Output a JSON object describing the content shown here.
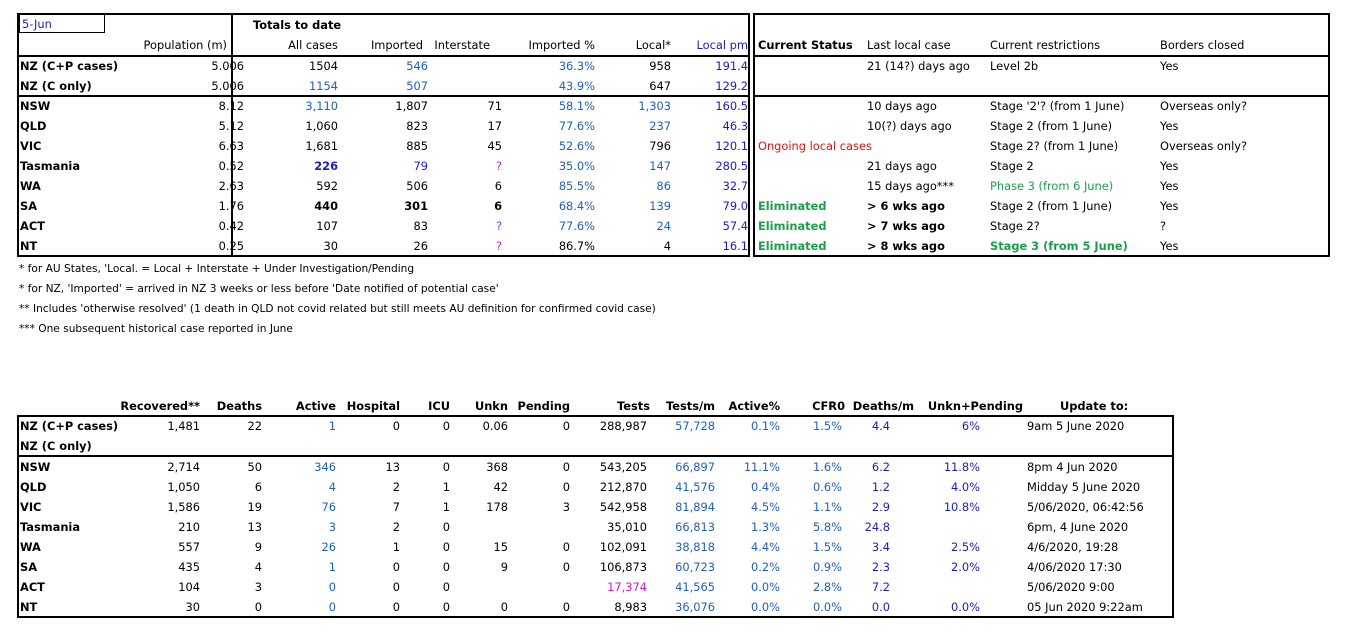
{
  "t1": {
    "date": "5-Jun",
    "group_header": "Totals to date",
    "headers": [
      "Population (m)",
      "All cases",
      "Imported",
      "Interstate",
      "Imported %",
      "Local*",
      "Local pm"
    ],
    "status_headers": [
      "Current Status",
      "Last local case",
      "Current restrictions",
      "Borders closed"
    ],
    "rows": [
      [
        "NZ (C+P cases)",
        "5.006",
        "1504",
        "546",
        "",
        "36.3%",
        "958",
        "191.4",
        "",
        "21 (14?) days ago",
        "Level 2b",
        "Yes"
      ],
      [
        "NZ (C only)",
        "5.006",
        "1154",
        "507",
        "",
        "43.9%",
        "647",
        "129.2",
        "",
        "",
        "",
        ""
      ],
      [
        "NSW",
        "8.12",
        "3,110",
        "1,807",
        "71",
        "58.1%",
        "1,303",
        "160.5",
        "",
        "10 days ago",
        "Stage '2'? (from 1 June)",
        "Overseas only?"
      ],
      [
        "QLD",
        "5.12",
        "1,060",
        "823",
        "17",
        "77.6%",
        "237",
        "46.3",
        "",
        "10(?) days ago",
        "Stage 2 (from 1 June)",
        "Yes"
      ],
      [
        "VIC",
        "6.63",
        "1,681",
        "885",
        "45",
        "52.6%",
        "796",
        "120.1",
        "Ongoing local cases",
        "",
        "Stage 2? (from 1 June)",
        "Overseas only?"
      ],
      [
        "Tasmania",
        "0.52",
        "226",
        "79",
        "?",
        "35.0%",
        "147",
        "280.5",
        "",
        "21 days ago",
        "Stage 2",
        "Yes"
      ],
      [
        "WA",
        "2.63",
        "592",
        "506",
        "6",
        "85.5%",
        "86",
        "32.7",
        "",
        "15 days ago***",
        "Phase 3 (from 6 June)",
        "Yes"
      ],
      [
        "SA",
        "1.76",
        "440",
        "301",
        "6",
        "68.4%",
        "139",
        "79.0",
        "Eliminated",
        "> 6 wks ago",
        "Stage 2 (from 1 June)",
        "Yes"
      ],
      [
        "ACT",
        "0.42",
        "107",
        "83",
        "?",
        "77.6%",
        "24",
        "57.4",
        "Eliminated",
        "> 7 wks ago",
        "Stage 2?",
        "?"
      ],
      [
        "NT",
        "0.25",
        "30",
        "26",
        "?",
        "86.7%",
        "4",
        "16.1",
        "Eliminated",
        "> 8 wks ago",
        "Stage 3 (from 5 June)",
        "Yes"
      ]
    ]
  },
  "notes": [
    "* for AU States, 'Local. = Local + Interstate + Under Investigation/Pending",
    "* for NZ, 'Imported' = arrived in NZ 3 weeks or less before 'Date notified of potential case'",
    "** Includes 'otherwise resolved' (1 death in QLD not covid related but still meets AU definition for confirmed covid case)",
    "*** One subsequent historical case reported in June"
  ],
  "t2": {
    "headers": [
      "Recovered**",
      "Deaths",
      "Active",
      "Hospital",
      "ICU",
      "Unkn",
      "Pending",
      "Tests",
      "Tests/m",
      "Active%",
      "CFR0",
      "Deaths/m",
      "Unkn+Pending",
      "Update to:"
    ],
    "rows": [
      [
        "NZ (C+P cases)",
        "1,481",
        "22",
        "1",
        "0",
        "0",
        "0.06",
        "0",
        "288,987",
        "57,728",
        "0.1%",
        "1.5%",
        "4.4",
        "6%",
        "9am 5 June 2020"
      ],
      [
        "NZ (C only)",
        "",
        "",
        "",
        "",
        "",
        "",
        "",
        "",
        "",
        "",
        "",
        "",
        "",
        ""
      ],
      [
        "NSW",
        "2,714",
        "50",
        "346",
        "13",
        "0",
        "368",
        "0",
        "543,205",
        "66,897",
        "11.1%",
        "1.6%",
        "6.2",
        "11.8%",
        "8pm 4 Jun 2020"
      ],
      [
        "QLD",
        "1,050",
        "6",
        "4",
        "2",
        "1",
        "42",
        "0",
        "212,870",
        "41,576",
        "0.4%",
        "0.6%",
        "1.2",
        "4.0%",
        "Midday 5 June 2020"
      ],
      [
        "VIC",
        "1,586",
        "19",
        "76",
        "7",
        "1",
        "178",
        "3",
        "542,958",
        "81,894",
        "4.5%",
        "1.1%",
        "2.9",
        "10.8%",
        "5/06/2020, 06:42:56"
      ],
      [
        "Tasmania",
        "210",
        "13",
        "3",
        "2",
        "0",
        "",
        "",
        "35,010",
        "66,813",
        "1.3%",
        "5.8%",
        "24.8",
        "",
        "6pm, 4 June 2020"
      ],
      [
        "WA",
        "557",
        "9",
        "26",
        "1",
        "0",
        "15",
        "0",
        "102,091",
        "38,818",
        "4.4%",
        "1.5%",
        "3.4",
        "2.5%",
        "4/6/2020, 19:28"
      ],
      [
        "SA",
        "435",
        "4",
        "1",
        "0",
        "0",
        "9",
        "0",
        "106,873",
        "60,723",
        "0.2%",
        "0.9%",
        "2.3",
        "2.0%",
        "4/06/2020 17:30"
      ],
      [
        "ACT",
        "104",
        "3",
        "0",
        "0",
        "0",
        "",
        "",
        "17,374",
        "41,565",
        "0.0%",
        "2.8%",
        "7.2",
        "",
        "5/06/2020 9:00"
      ],
      [
        "NT",
        "30",
        "0",
        "0",
        "0",
        "0",
        "0",
        "0",
        "8,983",
        "36,076",
        "0.0%",
        "0.0%",
        "0.0",
        "0.0%",
        "05 Jun 2020 9:22am"
      ]
    ]
  },
  "colors": {
    "blue": "#1f5fbf",
    "dark_blue": "#1a1acc",
    "purple": "#9b30d6",
    "red": "#e01010",
    "green": "#19a04a",
    "magenta": "#e010d0"
  }
}
